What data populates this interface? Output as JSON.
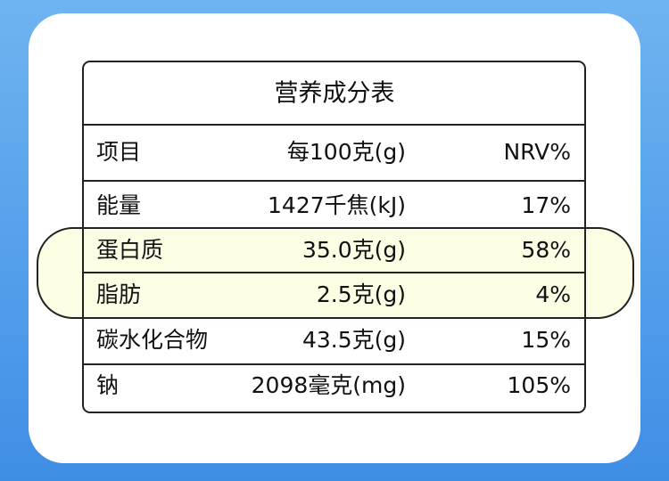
{
  "table": {
    "title": "营养成分表",
    "header": [
      "项目",
      "每100克(g)",
      "NRV%"
    ],
    "rows": [
      [
        "能量",
        "1427千焦(kJ)",
        "17%"
      ],
      [
        "蛋白质",
        "35.0克(g)",
        "58%"
      ],
      [
        "脂肪",
        "2.5克(g)",
        "4%"
      ],
      [
        "碳水化合物",
        "43.5克(g)",
        "15%"
      ],
      [
        "钠",
        "2098毫克(mg)",
        "105%"
      ]
    ]
  }
}
